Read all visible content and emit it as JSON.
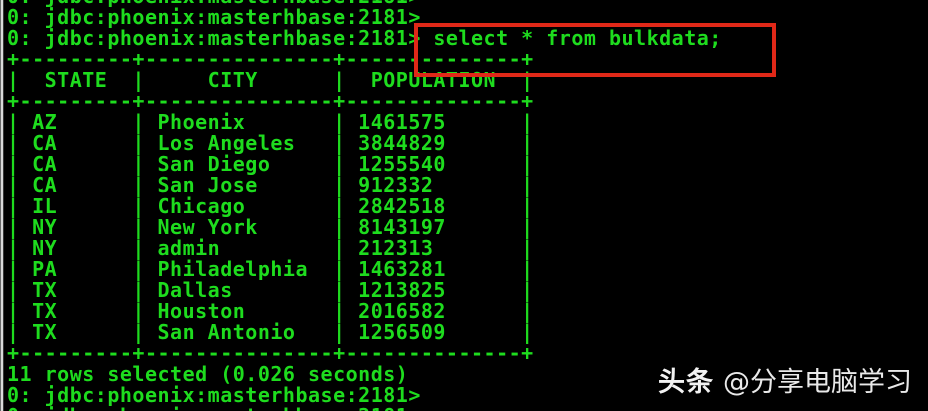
{
  "colors": {
    "background": "#000000",
    "terminal_green": "#1edc1e",
    "highlight_red": "#e02818",
    "scrollbar_gray": "#d9d9d9",
    "watermark_white": "#f2f2f2",
    "watermark_gray": "#e9e9e9"
  },
  "terminal": {
    "prompt": "0: jdbc:phoenix:masterhbase:2181>",
    "query": "select * from bulkdata;",
    "status": "11 rows selected (0.026 seconds)",
    "table": {
      "columns": [
        {
          "header": "STATE",
          "width": 9
        },
        {
          "header": "CITY",
          "width": 15
        },
        {
          "header": "POPULATION",
          "width": 14
        }
      ],
      "rows": [
        [
          "AZ",
          "Phoenix",
          "1461575"
        ],
        [
          "CA",
          "Los Angeles",
          "3844829"
        ],
        [
          "CA",
          "San Diego",
          "1255540"
        ],
        [
          "CA",
          "San Jose",
          "912332"
        ],
        [
          "IL",
          "Chicago",
          "2842518"
        ],
        [
          "NY",
          "New York",
          "8143197"
        ],
        [
          "NY",
          "admin",
          "212313"
        ],
        [
          "PA",
          "Philadelphia",
          "1463281"
        ],
        [
          "TX",
          "Dallas",
          "1213825"
        ],
        [
          "TX",
          "Houston",
          "2016582"
        ],
        [
          "TX",
          "San Antonio",
          "1256509"
        ]
      ]
    }
  },
  "watermark": {
    "brand": "头条",
    "handle": "@分享电脑学习"
  }
}
